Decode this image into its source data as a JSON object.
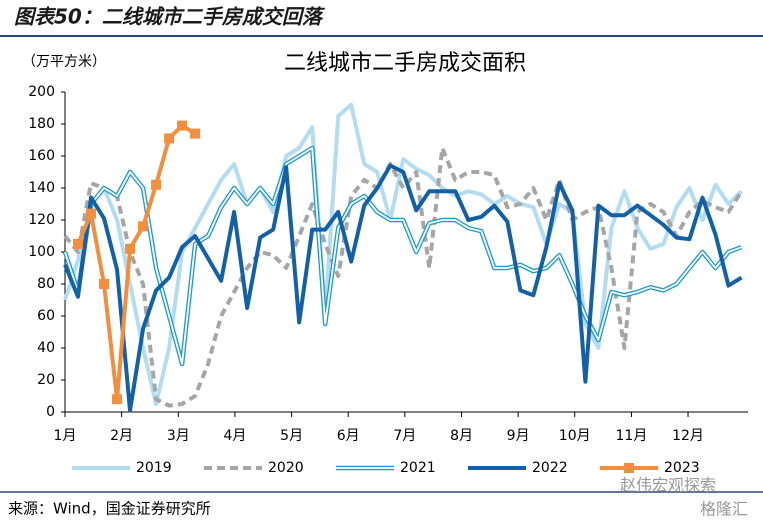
{
  "header": "图表50：二线城市二手房成交回落",
  "source": "来源：Wind，国金证券研究所",
  "watermark": [
    "赵伟宏观探索",
    "格隆汇"
  ],
  "chart_data": {
    "type": "line",
    "title": "二线城市二手房成交面积",
    "y_label": "（万平方米）",
    "xlim": [
      1,
      53.5
    ],
    "xticks": [
      {
        "value": 1,
        "label": "1月"
      },
      {
        "value": 5.35,
        "label": "2月"
      },
      {
        "value": 9.71,
        "label": "3月"
      },
      {
        "value": 14.06,
        "label": "4月"
      },
      {
        "value": 18.42,
        "label": "5月"
      },
      {
        "value": 22.77,
        "label": "6月"
      },
      {
        "value": 27.12,
        "label": "7月"
      },
      {
        "value": 31.48,
        "label": "8月"
      },
      {
        "value": 35.83,
        "label": "9月"
      },
      {
        "value": 40.18,
        "label": "10月"
      },
      {
        "value": 44.54,
        "label": "11月"
      },
      {
        "value": 48.89,
        "label": "12月"
      }
    ],
    "ylim": [
      0,
      200
    ],
    "yticks": [
      0,
      20,
      40,
      60,
      80,
      100,
      120,
      140,
      160,
      180,
      200
    ],
    "series": [
      {
        "name": "2019",
        "color": "#b3dcf2",
        "style": "solid",
        "x": [
          1,
          2,
          3,
          4,
          5,
          6,
          7,
          8,
          9,
          10,
          11,
          12,
          13,
          14,
          15,
          16,
          17,
          18,
          19,
          20,
          21,
          22,
          23,
          24,
          25,
          26,
          27,
          28,
          29,
          30,
          31,
          32,
          33,
          34,
          35,
          36,
          37,
          38,
          39,
          40,
          41,
          42,
          43,
          44,
          45,
          46,
          47,
          48,
          49,
          50,
          51,
          52,
          53
        ],
        "values": [
          70,
          95,
          130,
          140,
          120,
          80,
          40,
          5,
          40,
          100,
          115,
          130,
          145,
          155,
          130,
          140,
          125,
          160,
          165,
          178,
          60,
          185,
          192,
          155,
          150,
          120,
          158,
          152,
          148,
          140,
          135,
          138,
          136,
          130,
          135,
          130,
          128,
          105,
          130,
          125,
          55,
          40,
          115,
          138,
          115,
          102,
          105,
          128,
          140,
          120,
          142,
          130,
          138
        ]
      },
      {
        "name": "2020",
        "color": "#a6a6a6",
        "style": "dashed",
        "x": [
          1,
          2,
          3,
          4,
          5,
          6,
          7,
          8,
          9,
          10,
          11,
          12,
          13,
          14,
          15,
          16,
          17,
          18,
          19,
          20,
          21,
          22,
          23,
          24,
          25,
          26,
          27,
          28,
          29,
          30,
          31,
          32,
          33,
          34,
          35,
          36,
          37,
          38,
          39,
          40,
          41,
          42,
          43,
          44,
          45,
          46,
          47,
          48,
          49,
          50,
          51,
          52,
          53
        ],
        "values": [
          110,
          100,
          143,
          140,
          135,
          100,
          80,
          8,
          4,
          5,
          10,
          30,
          60,
          75,
          90,
          100,
          98,
          90,
          110,
          130,
          105,
          85,
          135,
          145,
          140,
          155,
          140,
          150,
          90,
          165,
          145,
          150,
          150,
          148,
          128,
          130,
          140,
          120,
          145,
          120,
          125,
          128,
          90,
          40,
          125,
          130,
          125,
          110,
          125,
          132,
          128,
          125,
          138
        ]
      },
      {
        "name": "2021",
        "color": "#1e9ad6",
        "style": "double",
        "x": [
          1,
          2,
          3,
          4,
          5,
          6,
          7,
          8,
          9,
          10,
          11,
          12,
          13,
          14,
          15,
          16,
          17,
          18,
          19,
          20,
          21,
          22,
          23,
          24,
          25,
          26,
          27,
          28,
          29,
          30,
          31,
          32,
          33,
          34,
          35,
          36,
          37,
          38,
          39,
          40,
          41,
          42,
          43,
          44,
          45,
          46,
          47,
          48,
          49,
          50,
          51,
          52,
          53
        ],
        "values": [
          100,
          75,
          130,
          140,
          135,
          150,
          140,
          90,
          60,
          30,
          105,
          110,
          128,
          140,
          130,
          140,
          130,
          155,
          160,
          165,
          55,
          115,
          130,
          135,
          125,
          120,
          120,
          100,
          118,
          120,
          120,
          115,
          113,
          90,
          90,
          92,
          88,
          90,
          98,
          80,
          60,
          45,
          75,
          73,
          75,
          78,
          76,
          80,
          90,
          100,
          90,
          100,
          103
        ]
      },
      {
        "name": "2022",
        "color": "#1261a8",
        "style": "thick",
        "x": [
          1,
          2,
          3,
          4,
          5,
          6,
          7,
          8,
          9,
          10,
          11,
          12,
          13,
          14,
          15,
          16,
          17,
          18,
          19,
          20,
          21,
          22,
          23,
          24,
          25,
          26,
          27,
          28,
          29,
          30,
          31,
          32,
          33,
          34,
          35,
          36,
          37,
          38,
          39,
          40,
          41,
          42,
          43,
          44,
          45,
          46,
          47,
          48,
          49,
          50,
          51,
          52,
          53
        ],
        "values": [
          92,
          72,
          134,
          121,
          89,
          1,
          52,
          76,
          84,
          103,
          110,
          96,
          82,
          125,
          65,
          109,
          114,
          153,
          56,
          114,
          114,
          125,
          94,
          129,
          140,
          154,
          150,
          126,
          138,
          138,
          138,
          120,
          122,
          129,
          119,
          76,
          73,
          103,
          143,
          126,
          19,
          129,
          123,
          123,
          129,
          123,
          117,
          109,
          108,
          134,
          111,
          79,
          84
        ]
      },
      {
        "name": "2023",
        "color": "#f28e3c",
        "style": "marker",
        "x": [
          2,
          3,
          4,
          5,
          6,
          7,
          8,
          9,
          10,
          11
        ],
        "values": [
          105,
          124,
          80,
          8,
          102,
          116,
          142,
          171,
          179,
          174
        ]
      }
    ]
  }
}
